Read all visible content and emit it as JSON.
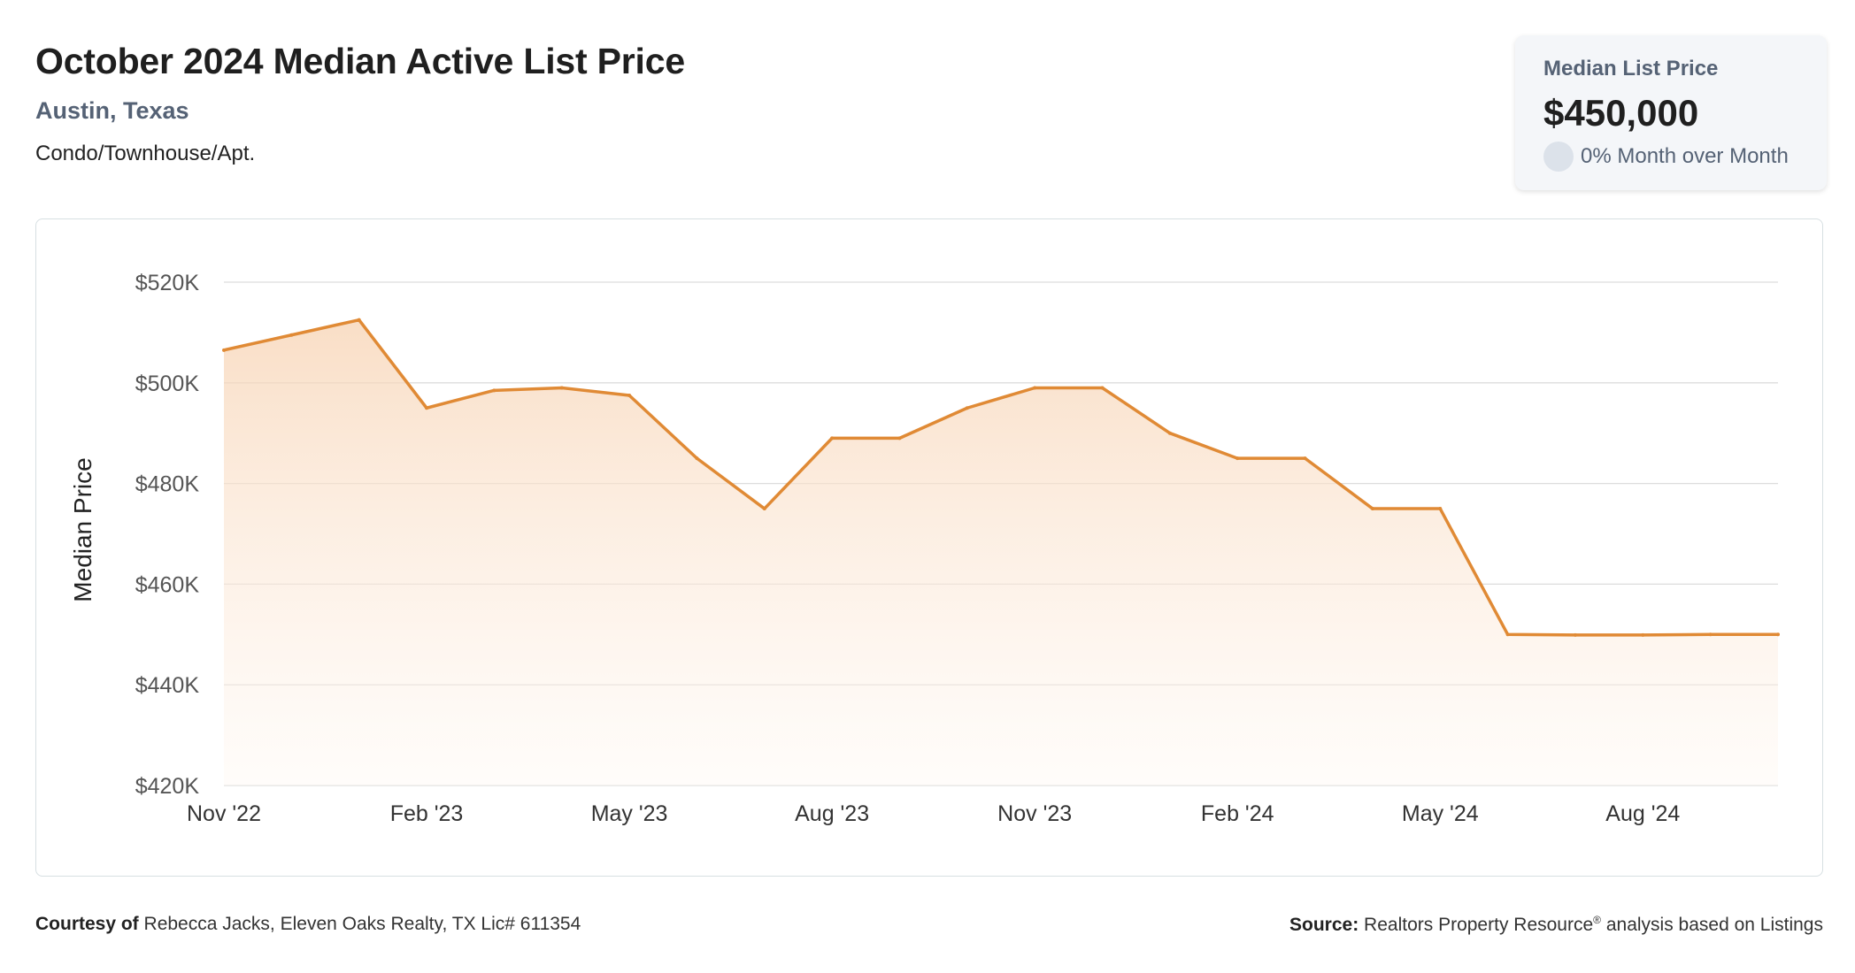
{
  "header": {
    "title": "October 2024 Median Active List Price",
    "location": "Austin, Texas",
    "property_type": "Condo/Townhouse/Apt."
  },
  "kpi": {
    "label": "Median List Price",
    "value": "$450,000",
    "change": "0% Month over Month"
  },
  "footer": {
    "courtesy_label": "Courtesy of",
    "courtesy_text": "Rebecca Jacks, Eleven Oaks Realty, TX Lic# 611354",
    "source_label": "Source:",
    "source_text_a": "Realtors Property Resource",
    "source_reg": "®",
    "source_text_b": " analysis based on Listings"
  },
  "colors": {
    "line": "#e08a35",
    "fill_top": "#f7d3b3",
    "fill_bottom": "#fff8f2",
    "grid": "#dddddd",
    "axis_text": "#555555"
  },
  "chart_data": {
    "type": "area",
    "ylabel": "Median Price",
    "xlabel": "",
    "ylim": [
      420000,
      520000
    ],
    "yticks": [
      520000,
      500000,
      480000,
      460000,
      440000,
      420000
    ],
    "ytick_labels": [
      "$520K",
      "$500K",
      "$480K",
      "$460K",
      "$440K",
      "$420K"
    ],
    "xtick_labels": [
      "Nov '22",
      "Feb '23",
      "May '23",
      "Aug '23",
      "Nov '23",
      "Feb '24",
      "May '24",
      "Aug '24"
    ],
    "grid": true,
    "series": [
      {
        "x": [
          "2022-11",
          "2022-12",
          "2023-01",
          "2023-02",
          "2023-03",
          "2023-04",
          "2023-05",
          "2023-06",
          "2023-07",
          "2023-08",
          "2023-09",
          "2023-10",
          "2023-11",
          "2023-12",
          "2024-01",
          "2024-02",
          "2024-03",
          "2024-04",
          "2024-05",
          "2024-06",
          "2024-07",
          "2024-08",
          "2024-09",
          "2024-10"
        ],
        "values": [
          506500,
          509500,
          512500,
          495000,
          498500,
          499000,
          497500,
          485000,
          475000,
          489000,
          489000,
          495000,
          499000,
          499000,
          490000,
          485000,
          485000,
          475000,
          475000,
          450000,
          449900,
          449900,
          450000,
          450000
        ]
      }
    ]
  }
}
